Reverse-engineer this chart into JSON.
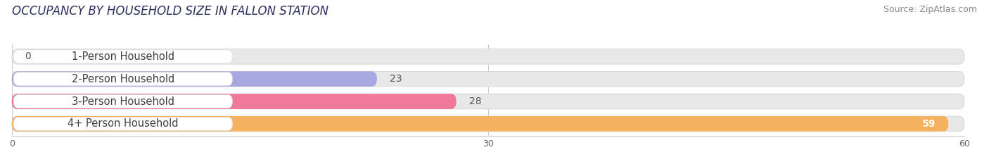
{
  "title": "OCCUPANCY BY HOUSEHOLD SIZE IN FALLON STATION",
  "source": "Source: ZipAtlas.com",
  "categories": [
    "1-Person Household",
    "2-Person Household",
    "3-Person Household",
    "4+ Person Household"
  ],
  "values": [
    0,
    23,
    28,
    59
  ],
  "bar_colors": [
    "#68cece",
    "#a8a8e0",
    "#f07898",
    "#f5b060"
  ],
  "xlim": [
    0,
    60
  ],
  "xticks": [
    0,
    30,
    60
  ],
  "background_color": "#ffffff",
  "bar_bg_color": "#e8e8e8",
  "title_fontsize": 12,
  "source_fontsize": 9,
  "label_fontsize": 10.5,
  "value_fontsize": 10
}
